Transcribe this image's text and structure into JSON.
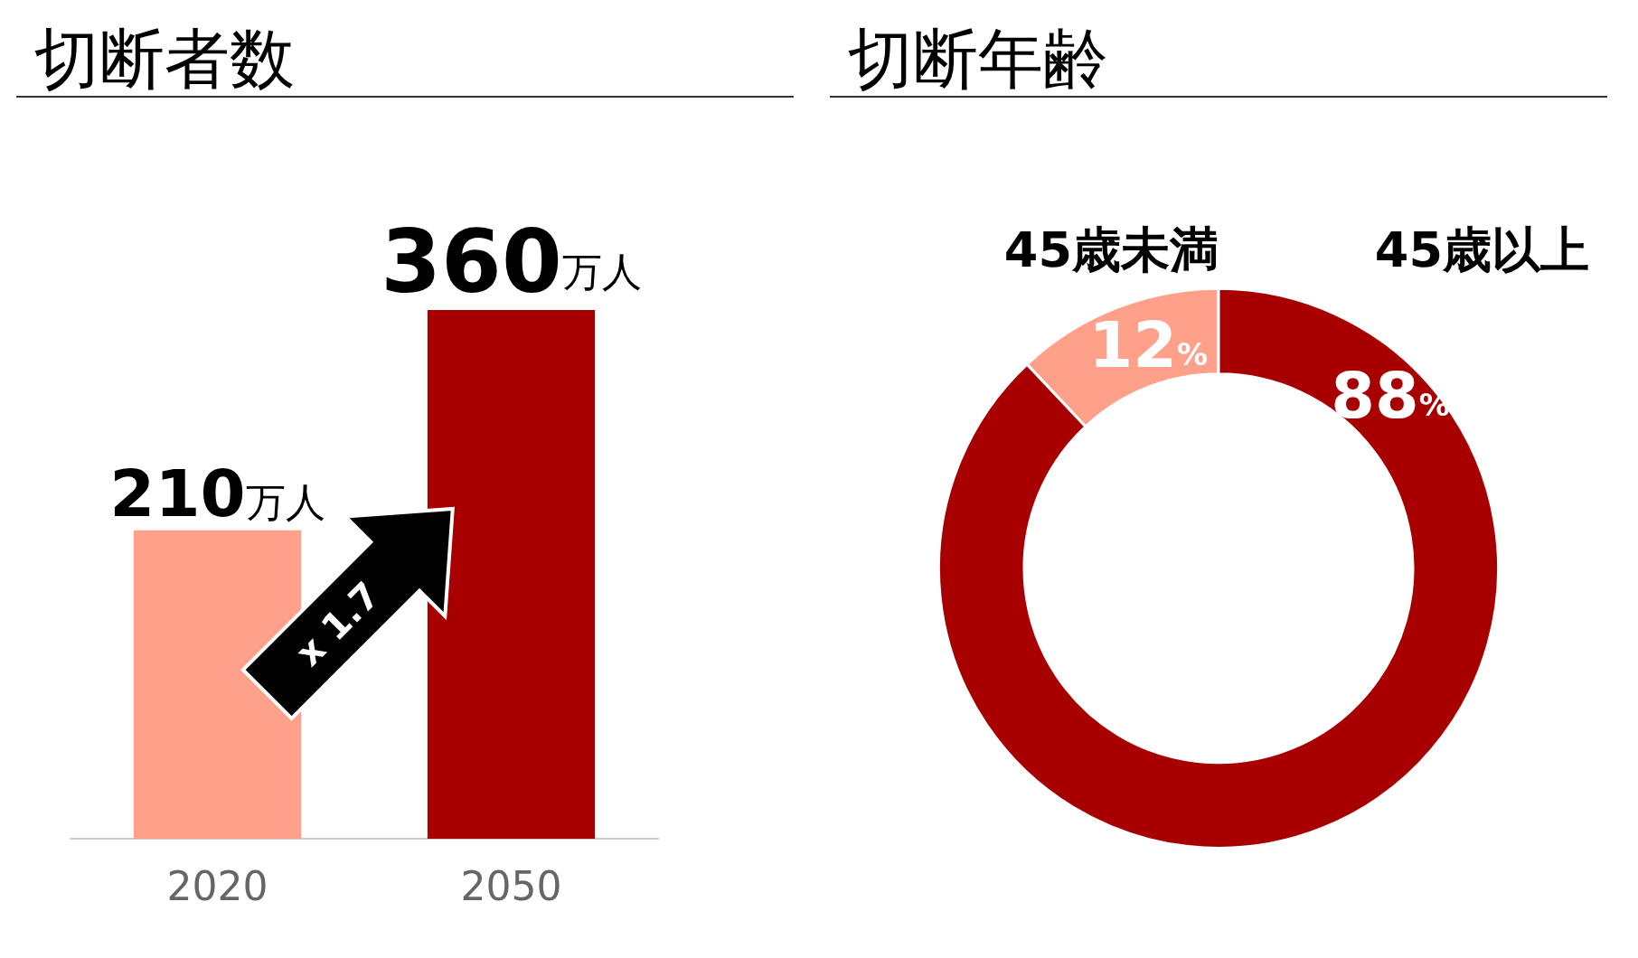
{
  "chart_data": [
    {
      "type": "bar",
      "title": "切断者数",
      "categories": [
        "2020",
        "2050"
      ],
      "values": [
        210,
        360
      ],
      "colors": [
        "#ffa08a",
        "#a80000"
      ],
      "value_labels": [
        "210万人",
        "360万人"
      ],
      "annotations": [
        "x 1.7"
      ],
      "legend": false
    },
    {
      "type": "donut",
      "title": "切断年齢",
      "categories": [
        "45歳未満",
        "45歳以上"
      ],
      "values": [
        12,
        88
      ],
      "colors": [
        "#ffa08a",
        "#a80000"
      ],
      "value_labels": [
        "12%",
        "88%"
      ],
      "legend": false
    }
  ]
}
